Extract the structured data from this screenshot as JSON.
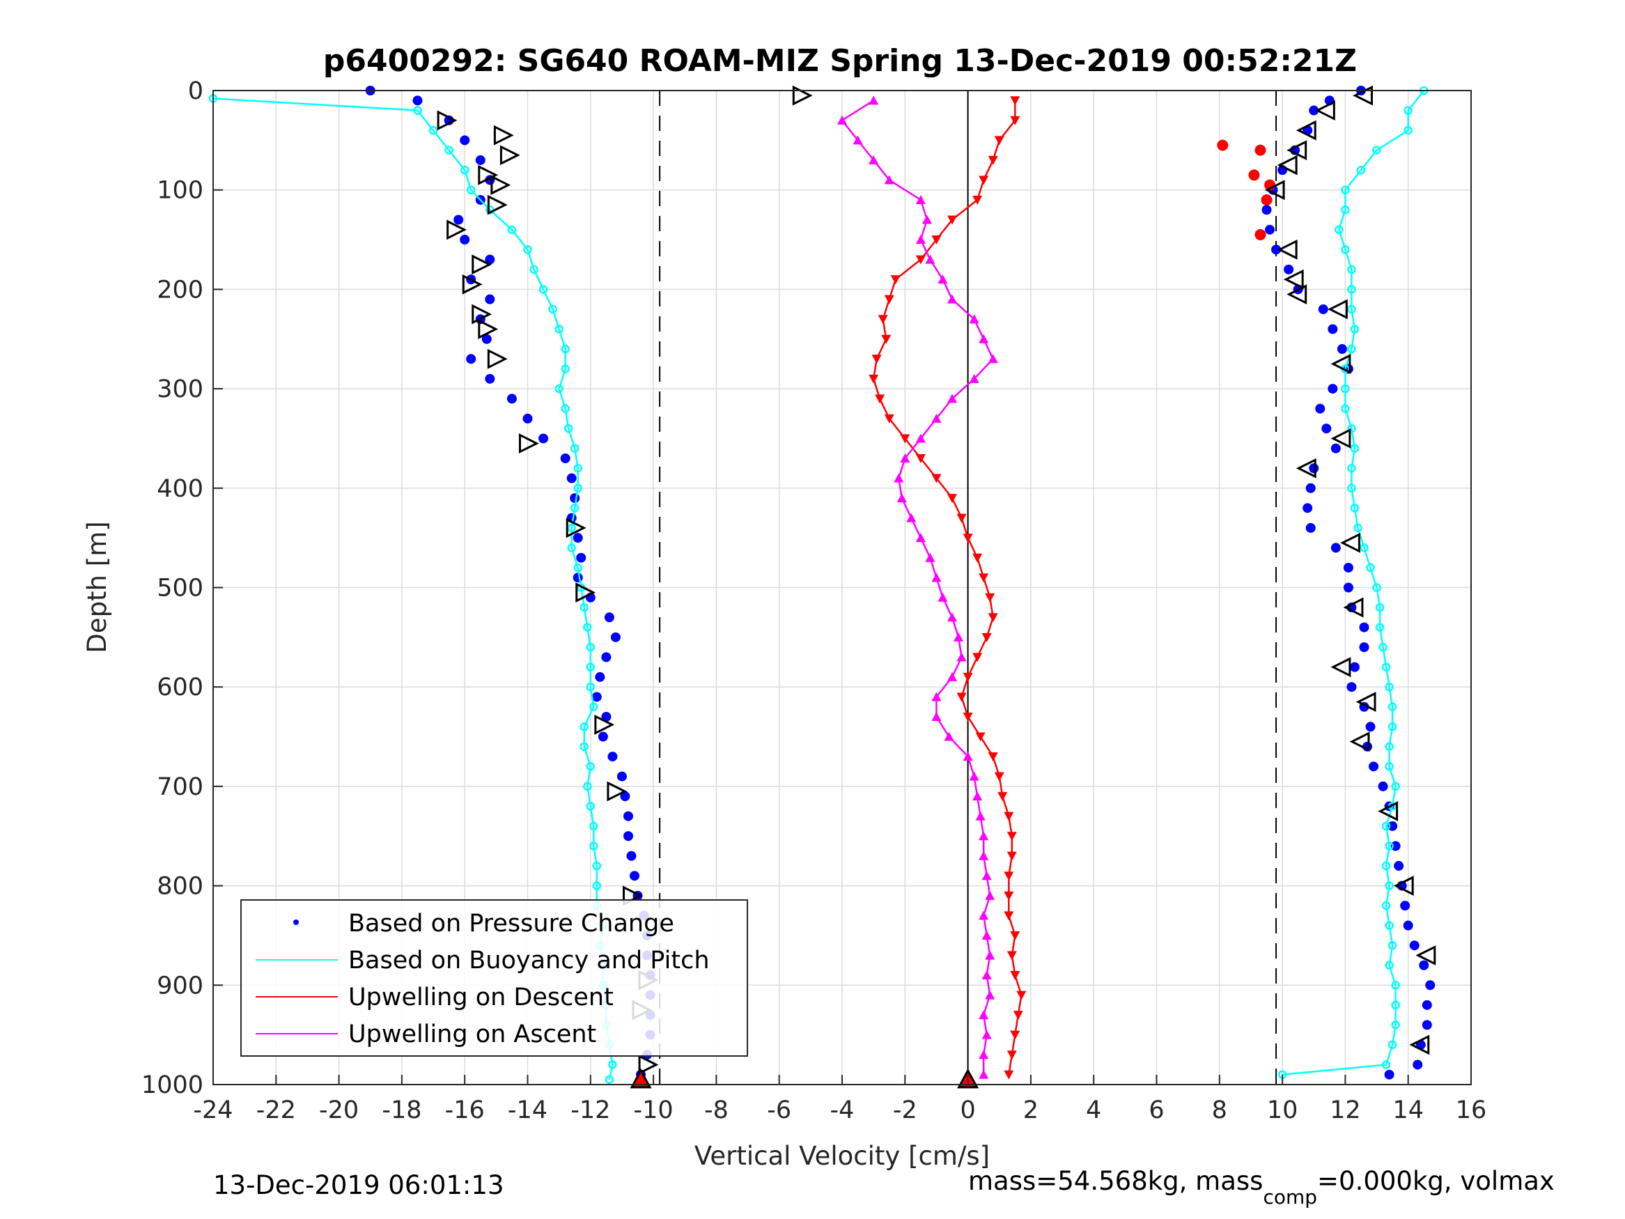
{
  "chart_data": {
    "type": "scatter",
    "title": "p6400292: SG640 ROAM-MIZ Spring 13-Dec-2019 00:52:21Z",
    "xlabel": "Vertical Velocity [cm/s]",
    "ylabel": "Depth [m]",
    "xlim": [
      -24,
      16
    ],
    "ylim": [
      0,
      1000
    ],
    "y_reversed": true,
    "grid": true,
    "x_ticks": [
      -24,
      -22,
      -20,
      -18,
      -16,
      -14,
      -12,
      -10,
      -8,
      -6,
      -4,
      -2,
      0,
      2,
      4,
      6,
      8,
      10,
      12,
      14,
      16
    ],
    "y_ticks": [
      0,
      100,
      200,
      300,
      400,
      500,
      600,
      700,
      800,
      900,
      1000
    ],
    "reference_lines": [
      -9.8,
      0,
      9.8
    ],
    "legend_position": "bottom-left",
    "legend": [
      "Based on Pressure Change",
      "Based on Buoyancy and Pitch",
      "Upwelling on Descent",
      "Upwelling on Ascent"
    ],
    "series": [
      {
        "name": "Based on Pressure Change (descent)",
        "color": "#0000ff",
        "depth": [
          0,
          10,
          30,
          50,
          70,
          90,
          110,
          130,
          150,
          170,
          190,
          210,
          230,
          250,
          270,
          290,
          310,
          330,
          350,
          370,
          390,
          410,
          430,
          450,
          470,
          490,
          510,
          530,
          550,
          570,
          590,
          610,
          630,
          650,
          670,
          690,
          710,
          730,
          750,
          770,
          790,
          810,
          830,
          850,
          870,
          890,
          910,
          930,
          950,
          970,
          990
        ],
        "values": [
          -19,
          -17.5,
          -16.5,
          -16,
          -15.5,
          -15.2,
          -15.5,
          -16.2,
          -16,
          -15.2,
          -15.8,
          -15.2,
          -15.5,
          -15.3,
          -15.8,
          -15.2,
          -14.5,
          -14,
          -13.5,
          -12.8,
          -12.6,
          -12.5,
          -12.6,
          -12.4,
          -12.3,
          -12.4,
          -12,
          -11.4,
          -11.2,
          -11.5,
          -11.7,
          -11.8,
          -11.5,
          -11.6,
          -11.3,
          -11,
          -10.9,
          -10.8,
          -10.8,
          -10.7,
          -10.6,
          -10.5,
          -10.3,
          -10.2,
          -10.2,
          -10.1,
          -10.1,
          -10.1,
          -10.1,
          -10.2,
          -10.4
        ]
      },
      {
        "name": "Based on Pressure Change (ascent)",
        "color": "#0000ff",
        "depth": [
          0,
          10,
          20,
          40,
          60,
          80,
          100,
          120,
          140,
          160,
          180,
          200,
          220,
          240,
          260,
          280,
          300,
          320,
          340,
          360,
          380,
          400,
          420,
          440,
          460,
          480,
          500,
          520,
          540,
          560,
          580,
          600,
          620,
          640,
          660,
          680,
          700,
          720,
          740,
          760,
          780,
          800,
          820,
          840,
          860,
          880,
          900,
          920,
          940,
          960,
          980,
          990
        ],
        "values": [
          12.5,
          11.5,
          11,
          10.8,
          10.4,
          10,
          9.7,
          9.5,
          9.6,
          9.8,
          10.2,
          10.5,
          11.3,
          11.6,
          11.9,
          12.1,
          11.6,
          11.2,
          11.4,
          11.7,
          11,
          10.9,
          10.8,
          10.9,
          11.7,
          12.1,
          12.1,
          12.2,
          12.6,
          12.6,
          12.3,
          12.2,
          12.6,
          12.8,
          12.7,
          12.9,
          13.2,
          13.4,
          13.5,
          13.6,
          13.7,
          13.8,
          13.9,
          14,
          14.2,
          14.5,
          14.7,
          14.6,
          14.6,
          14.4,
          14.3,
          13.4
        ]
      },
      {
        "name": "Based on Buoyancy and Pitch (descent)",
        "color": "#00ffff",
        "depth": [
          8,
          20,
          40,
          60,
          80,
          100,
          120,
          140,
          160,
          180,
          200,
          220,
          240,
          260,
          280,
          300,
          320,
          340,
          360,
          380,
          400,
          420,
          440,
          460,
          480,
          500,
          520,
          540,
          560,
          580,
          600,
          620,
          640,
          660,
          680,
          700,
          720,
          740,
          760,
          780,
          800,
          820,
          840,
          860,
          880,
          900,
          920,
          940,
          960,
          980,
          995
        ],
        "values": [
          -24,
          -17.5,
          -17,
          -16.5,
          -16,
          -15.8,
          -15.2,
          -14.5,
          -14,
          -13.8,
          -13.5,
          -13.2,
          -13,
          -12.8,
          -12.8,
          -13,
          -12.8,
          -12.7,
          -12.5,
          -12.4,
          -12.4,
          -12.5,
          -12.6,
          -12.6,
          -12.4,
          -12.3,
          -12.2,
          -12.1,
          -12,
          -12,
          -12,
          -11.9,
          -12.2,
          -12.2,
          -12,
          -12.1,
          -12,
          -11.9,
          -11.9,
          -11.8,
          -11.8,
          -11.8,
          -11.6,
          -11.7,
          -11.6,
          -11.6,
          -11.5,
          -11.5,
          -11.4,
          -11.3,
          -11.4
        ]
      },
      {
        "name": "Based on Buoyancy and Pitch (ascent)",
        "color": "#00ffff",
        "depth": [
          0,
          20,
          40,
          60,
          80,
          100,
          120,
          140,
          160,
          180,
          200,
          220,
          240,
          260,
          280,
          300,
          320,
          340,
          360,
          380,
          400,
          420,
          440,
          460,
          480,
          500,
          520,
          540,
          560,
          580,
          600,
          620,
          640,
          660,
          680,
          700,
          720,
          740,
          760,
          780,
          800,
          820,
          840,
          860,
          880,
          900,
          920,
          940,
          960,
          980,
          990
        ],
        "values": [
          14.5,
          14,
          14,
          13,
          12.5,
          12,
          12,
          11.8,
          12,
          12.2,
          12.2,
          12.2,
          12.3,
          12.2,
          12,
          12,
          12,
          12.2,
          12.3,
          12.2,
          12.2,
          12.3,
          12.4,
          12.6,
          12.8,
          13,
          13.1,
          13.1,
          13.2,
          13.3,
          13.4,
          13.5,
          13.5,
          13.4,
          13.4,
          13.6,
          13.5,
          13.3,
          13.4,
          13.3,
          13.4,
          13.3,
          13.4,
          13.5,
          13.4,
          13.6,
          13.6,
          13.6,
          13.5,
          13.3,
          10
        ]
      },
      {
        "name": "Upwelling on Descent",
        "color": "#ff0000",
        "depth": [
          10,
          30,
          50,
          70,
          90,
          110,
          130,
          150,
          170,
          190,
          210,
          230,
          250,
          270,
          290,
          310,
          330,
          350,
          370,
          390,
          410,
          430,
          450,
          470,
          490,
          510,
          530,
          550,
          570,
          590,
          610,
          630,
          650,
          670,
          690,
          710,
          730,
          750,
          770,
          790,
          810,
          830,
          850,
          870,
          890,
          910,
          930,
          950,
          970,
          990
        ],
        "values": [
          1.5,
          1.5,
          1,
          0.8,
          0.5,
          0.3,
          -0.5,
          -1,
          -1.5,
          -2.3,
          -2.5,
          -2.7,
          -2.6,
          -2.9,
          -3,
          -2.8,
          -2.5,
          -2,
          -1.5,
          -1,
          -0.5,
          -0.2,
          0,
          0.3,
          0.5,
          0.7,
          0.8,
          0.6,
          0.3,
          0,
          -0.2,
          0,
          0.4,
          0.8,
          1,
          1.1,
          1.3,
          1.4,
          1.4,
          1.3,
          1.3,
          1.3,
          1.5,
          1.4,
          1.5,
          1.7,
          1.6,
          1.5,
          1.4,
          1.3
        ]
      },
      {
        "name": "Upwelling on Ascent",
        "color": "#ff00ff",
        "depth": [
          10,
          30,
          50,
          70,
          90,
          110,
          130,
          150,
          170,
          190,
          210,
          230,
          250,
          270,
          290,
          310,
          330,
          350,
          370,
          390,
          410,
          430,
          450,
          470,
          490,
          510,
          530,
          550,
          570,
          590,
          610,
          630,
          650,
          670,
          690,
          710,
          730,
          750,
          770,
          790,
          810,
          830,
          850,
          870,
          890,
          910,
          930,
          950,
          970,
          990
        ],
        "values": [
          -3,
          -4,
          -3.5,
          -3,
          -2.5,
          -1.5,
          -1.3,
          -1.5,
          -1.2,
          -0.8,
          -0.5,
          0.2,
          0.5,
          0.8,
          0.2,
          -0.5,
          -1,
          -1.5,
          -2,
          -2.2,
          -2.1,
          -1.8,
          -1.5,
          -1.2,
          -1,
          -0.8,
          -0.5,
          -0.3,
          -0.2,
          -0.5,
          -1,
          -1,
          -0.6,
          0,
          0.2,
          0.3,
          0.4,
          0.5,
          0.5,
          0.6,
          0.7,
          0.5,
          0.6,
          0.7,
          0.6,
          0.7,
          0.5,
          0.6,
          0.5,
          0.5
        ]
      }
    ],
    "markers": {
      "descent_triangles": [
        [
          -16.6,
          30
        ],
        [
          -14.8,
          45
        ],
        [
          -14.6,
          65
        ],
        [
          -15.3,
          85
        ],
        [
          -14.9,
          95
        ],
        [
          -15,
          115
        ],
        [
          -16.3,
          140
        ],
        [
          -15.5,
          175
        ],
        [
          -15.8,
          195
        ],
        [
          -15.5,
          225
        ],
        [
          -15.3,
          240
        ],
        [
          -15,
          270
        ],
        [
          -14,
          355
        ],
        [
          -12.5,
          440
        ],
        [
          -12.2,
          505
        ],
        [
          -11.6,
          638
        ],
        [
          -11.2,
          705
        ],
        [
          -10.7,
          810
        ],
        [
          -10.2,
          895
        ],
        [
          -10.4,
          925
        ],
        [
          -10.2,
          980
        ],
        [
          -5.3,
          5
        ]
      ],
      "ascent_triangles": [
        [
          12.6,
          5
        ],
        [
          11.4,
          20
        ],
        [
          10.8,
          40
        ],
        [
          10.5,
          60
        ],
        [
          10.2,
          75
        ],
        [
          9.8,
          100
        ],
        [
          10.2,
          160
        ],
        [
          10.4,
          190
        ],
        [
          10.5,
          205
        ],
        [
          11.8,
          220
        ],
        [
          11.9,
          275
        ],
        [
          11.9,
          350
        ],
        [
          10.8,
          380
        ],
        [
          12.2,
          455
        ],
        [
          12.3,
          520
        ],
        [
          11.9,
          580
        ],
        [
          12.7,
          615
        ],
        [
          12.5,
          655
        ],
        [
          13.4,
          725
        ],
        [
          13.9,
          800
        ],
        [
          14.6,
          870
        ],
        [
          14.4,
          960
        ]
      ],
      "turn_point_descent": [
        -10.4,
        995
      ],
      "turn_point_ascent": [
        0,
        995
      ],
      "red_dots": [
        [
          8.1,
          55
        ],
        [
          9.3,
          60
        ],
        [
          9.1,
          85
        ],
        [
          9.6,
          95
        ],
        [
          9.5,
          110
        ],
        [
          9.3,
          145
        ]
      ]
    }
  },
  "footer": {
    "timestamp": "13-Dec-2019 06:01:13",
    "mass_text": "mass=54.568kg, mass",
    "mass_sub": "comp",
    "mass_rest": "=0.000kg, volmax"
  }
}
